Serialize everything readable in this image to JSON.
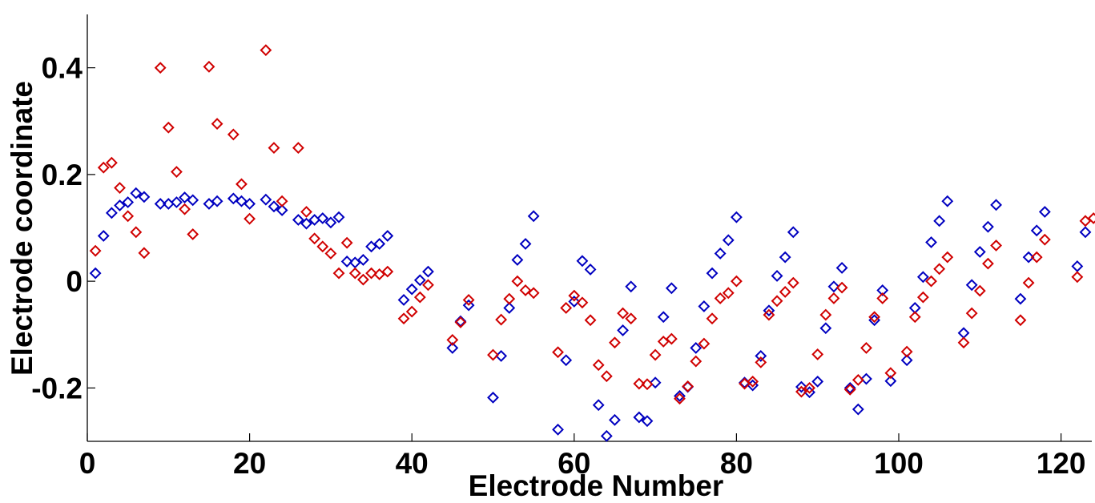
{
  "chart_data": {
    "type": "scatter",
    "title": "",
    "xlabel": "Electrode Number",
    "ylabel": "Electrode coordinate",
    "xlim": [
      0,
      124
    ],
    "ylim": [
      -0.3,
      0.5
    ],
    "xticks": [
      0,
      20,
      40,
      60,
      80,
      100,
      120
    ],
    "yticks": [
      -0.2,
      0,
      0.2,
      0.4
    ],
    "xtick_labels": [
      "0",
      "20",
      "40",
      "60",
      "80",
      "100",
      "120"
    ],
    "ytick_labels": [
      "-0.2",
      "0",
      "0.2",
      "0.4"
    ],
    "grid": false,
    "legend": "none",
    "series": [
      {
        "color": "#0000c0",
        "marker": "diamond",
        "points": [
          [
            1,
            0.015
          ],
          [
            2,
            0.085
          ],
          [
            3,
            0.128
          ],
          [
            4,
            0.142
          ],
          [
            5,
            0.148
          ],
          [
            6,
            0.165
          ],
          [
            7,
            0.158
          ],
          [
            9,
            0.145
          ],
          [
            10,
            0.145
          ],
          [
            11,
            0.148
          ],
          [
            12,
            0.157
          ],
          [
            13,
            0.152
          ],
          [
            15,
            0.145
          ],
          [
            16,
            0.15
          ],
          [
            18,
            0.155
          ],
          [
            19,
            0.15
          ],
          [
            20,
            0.145
          ],
          [
            22,
            0.153
          ],
          [
            23,
            0.14
          ],
          [
            24,
            0.133
          ],
          [
            26,
            0.115
          ],
          [
            27,
            0.108
          ],
          [
            28,
            0.115
          ],
          [
            29,
            0.118
          ],
          [
            30,
            0.11
          ],
          [
            31,
            0.12
          ],
          [
            32,
            0.037
          ],
          [
            33,
            0.035
          ],
          [
            34,
            0.04
          ],
          [
            35,
            0.065
          ],
          [
            36,
            0.07
          ],
          [
            37,
            0.085
          ],
          [
            39,
            -0.035
          ],
          [
            40,
            -0.015
          ],
          [
            41,
            0.002
          ],
          [
            42,
            0.018
          ],
          [
            45,
            -0.125
          ],
          [
            46,
            -0.075
          ],
          [
            47,
            -0.045
          ],
          [
            50,
            -0.218
          ],
          [
            51,
            -0.14
          ],
          [
            52,
            -0.05
          ],
          [
            53,
            0.04
          ],
          [
            54,
            0.07
          ],
          [
            55,
            0.122
          ],
          [
            58,
            -0.278
          ],
          [
            59,
            -0.148
          ],
          [
            60,
            -0.038
          ],
          [
            61,
            0.038
          ],
          [
            62,
            0.022
          ],
          [
            63,
            -0.232
          ],
          [
            64,
            -0.29
          ],
          [
            65,
            -0.26
          ],
          [
            66,
            -0.092
          ],
          [
            67,
            -0.01
          ],
          [
            68,
            -0.255
          ],
          [
            69,
            -0.262
          ],
          [
            70,
            -0.19
          ],
          [
            71,
            -0.067
          ],
          [
            72,
            -0.013
          ],
          [
            73,
            -0.215
          ],
          [
            74,
            -0.198
          ],
          [
            75,
            -0.125
          ],
          [
            76,
            -0.047
          ],
          [
            77,
            0.015
          ],
          [
            78,
            0.052
          ],
          [
            79,
            0.077
          ],
          [
            80,
            0.12
          ],
          [
            81,
            -0.19
          ],
          [
            82,
            -0.195
          ],
          [
            83,
            -0.14
          ],
          [
            84,
            -0.055
          ],
          [
            85,
            0.01
          ],
          [
            86,
            0.045
          ],
          [
            87,
            0.092
          ],
          [
            88,
            -0.198
          ],
          [
            89,
            -0.208
          ],
          [
            90,
            -0.188
          ],
          [
            91,
            -0.088
          ],
          [
            92,
            -0.01
          ],
          [
            93,
            0.025
          ],
          [
            94,
            -0.2
          ],
          [
            95,
            -0.24
          ],
          [
            96,
            -0.183
          ],
          [
            97,
            -0.073
          ],
          [
            98,
            -0.017
          ],
          [
            99,
            -0.187
          ],
          [
            101,
            -0.148
          ],
          [
            102,
            -0.05
          ],
          [
            103,
            0.008
          ],
          [
            104,
            0.073
          ],
          [
            105,
            0.113
          ],
          [
            106,
            0.15
          ],
          [
            108,
            -0.097
          ],
          [
            109,
            -0.007
          ],
          [
            110,
            0.055
          ],
          [
            111,
            0.102
          ],
          [
            112,
            0.143
          ],
          [
            115,
            -0.033
          ],
          [
            116,
            0.045
          ],
          [
            117,
            0.095
          ],
          [
            118,
            0.13
          ],
          [
            122,
            0.028
          ],
          [
            123,
            0.092
          ]
        ]
      },
      {
        "color": "#d00000",
        "marker": "diamond",
        "points": [
          [
            1,
            0.057
          ],
          [
            2,
            0.213
          ],
          [
            3,
            0.222
          ],
          [
            4,
            0.175
          ],
          [
            5,
            0.122
          ],
          [
            6,
            0.092
          ],
          [
            7,
            0.053
          ],
          [
            9,
            0.4
          ],
          [
            10,
            0.288
          ],
          [
            11,
            0.205
          ],
          [
            12,
            0.135
          ],
          [
            13,
            0.088
          ],
          [
            15,
            0.402
          ],
          [
            16,
            0.295
          ],
          [
            18,
            0.275
          ],
          [
            19,
            0.182
          ],
          [
            20,
            0.117
          ],
          [
            22,
            0.433
          ],
          [
            23,
            0.25
          ],
          [
            24,
            0.15
          ],
          [
            26,
            0.25
          ],
          [
            27,
            0.13
          ],
          [
            28,
            0.08
          ],
          [
            29,
            0.065
          ],
          [
            30,
            0.052
          ],
          [
            31,
            0.015
          ],
          [
            32,
            0.072
          ],
          [
            33,
            0.015
          ],
          [
            34,
            0.003
          ],
          [
            35,
            0.015
          ],
          [
            36,
            0.013
          ],
          [
            37,
            0.018
          ],
          [
            39,
            -0.07
          ],
          [
            40,
            -0.057
          ],
          [
            41,
            -0.03
          ],
          [
            42,
            -0.007
          ],
          [
            45,
            -0.11
          ],
          [
            46,
            -0.077
          ],
          [
            47,
            -0.035
          ],
          [
            50,
            -0.138
          ],
          [
            51,
            -0.072
          ],
          [
            52,
            -0.033
          ],
          [
            53,
            0.0
          ],
          [
            54,
            -0.017
          ],
          [
            55,
            -0.022
          ],
          [
            58,
            -0.133
          ],
          [
            59,
            -0.05
          ],
          [
            60,
            -0.027
          ],
          [
            61,
            -0.04
          ],
          [
            62,
            -0.073
          ],
          [
            63,
            -0.157
          ],
          [
            64,
            -0.178
          ],
          [
            65,
            -0.115
          ],
          [
            66,
            -0.06
          ],
          [
            67,
            -0.07
          ],
          [
            68,
            -0.192
          ],
          [
            69,
            -0.193
          ],
          [
            70,
            -0.138
          ],
          [
            71,
            -0.113
          ],
          [
            72,
            -0.108
          ],
          [
            73,
            -0.22
          ],
          [
            74,
            -0.197
          ],
          [
            75,
            -0.15
          ],
          [
            76,
            -0.117
          ],
          [
            77,
            -0.07
          ],
          [
            78,
            -0.032
          ],
          [
            79,
            -0.022
          ],
          [
            80,
            0.0
          ],
          [
            81,
            -0.192
          ],
          [
            82,
            -0.188
          ],
          [
            83,
            -0.152
          ],
          [
            84,
            -0.063
          ],
          [
            85,
            -0.037
          ],
          [
            86,
            -0.02
          ],
          [
            87,
            -0.003
          ],
          [
            88,
            -0.207
          ],
          [
            89,
            -0.2
          ],
          [
            90,
            -0.137
          ],
          [
            91,
            -0.063
          ],
          [
            92,
            -0.032
          ],
          [
            93,
            -0.012
          ],
          [
            94,
            -0.203
          ],
          [
            95,
            -0.185
          ],
          [
            96,
            -0.125
          ],
          [
            97,
            -0.067
          ],
          [
            98,
            -0.032
          ],
          [
            99,
            -0.172
          ],
          [
            101,
            -0.132
          ],
          [
            102,
            -0.067
          ],
          [
            103,
            -0.03
          ],
          [
            104,
            0.0
          ],
          [
            105,
            0.023
          ],
          [
            106,
            0.045
          ],
          [
            108,
            -0.115
          ],
          [
            109,
            -0.06
          ],
          [
            110,
            -0.018
          ],
          [
            111,
            0.033
          ],
          [
            112,
            0.067
          ],
          [
            115,
            -0.073
          ],
          [
            116,
            -0.003
          ],
          [
            117,
            0.045
          ],
          [
            118,
            0.078
          ],
          [
            122,
            0.008
          ],
          [
            123,
            0.113
          ],
          [
            124,
            0.118
          ]
        ]
      }
    ]
  }
}
